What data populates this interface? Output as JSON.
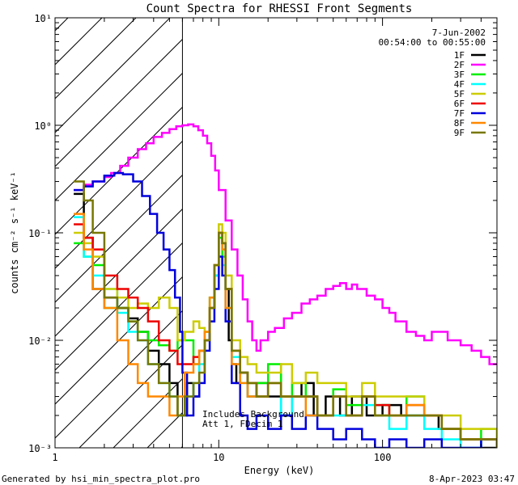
{
  "chart_data": {
    "type": "line",
    "title": "Count Spectra for RHESSI Front Segments",
    "xlabel": "Energy (keV)",
    "ylabel": "counts cm⁻² s⁻¹ keV⁻¹",
    "xscale": "log",
    "yscale": "log",
    "xlim": [
      1,
      500
    ],
    "ylim": [
      0.001,
      10
    ],
    "x_ticks": [
      {
        "value": 1,
        "label": "1"
      },
      {
        "value": 10,
        "label": "10"
      },
      {
        "value": 100,
        "label": "100"
      }
    ],
    "y_ticks": [
      {
        "value": 10,
        "label": "10¹"
      },
      {
        "value": 1,
        "label": "10⁰"
      },
      {
        "value": 0.1,
        "label": "10⁻¹"
      },
      {
        "value": 0.01,
        "label": "10⁻²"
      },
      {
        "value": 0.001,
        "label": "10⁻³"
      }
    ],
    "date": "7-Jun-2002",
    "time_range": "00:54:00 to 00:55:00",
    "attenuator_region_max_kev": 6,
    "annotation_line1": "Includes Background",
    "annotation_line2": "Att 1, FDecim 1",
    "legend_position": "top-right",
    "series": [
      {
        "name": "1F",
        "color": "#000000",
        "x": [
          1.3,
          1.5,
          1.7,
          2.0,
          2.4,
          2.8,
          3.2,
          3.7,
          4.3,
          5.0,
          5.6,
          6.0,
          6.4,
          7.0,
          7.6,
          8.2,
          8.8,
          9.4,
          10.0,
          10.5,
          11.0,
          11.5,
          12.0,
          12.8,
          13.5,
          15,
          17,
          20,
          24,
          28,
          32,
          38,
          45,
          55,
          65,
          80,
          100,
          130,
          170,
          220,
          300,
          400,
          500
        ],
        "y": [
          0.23,
          0.09,
          0.03,
          0.025,
          0.02,
          0.016,
          0.012,
          0.008,
          0.006,
          0.004,
          0.002,
          0.002,
          0.004,
          0.003,
          0.008,
          0.01,
          0.02,
          0.04,
          0.1,
          0.08,
          0.03,
          0.01,
          0.006,
          0.004,
          0.005,
          0.003,
          0.004,
          0.003,
          0.002,
          0.003,
          0.004,
          0.002,
          0.003,
          0.002,
          0.003,
          0.002,
          0.0025,
          0.002,
          0.002,
          0.0015,
          0.0012,
          0.001,
          0.001
        ]
      },
      {
        "name": "2F",
        "color": "#ff00ff",
        "x": [
          1.3,
          1.5,
          1.7,
          2.0,
          2.2,
          2.5,
          2.8,
          3.2,
          3.6,
          4.0,
          4.5,
          5.0,
          5.5,
          6.0,
          6.5,
          7.0,
          7.5,
          8.0,
          8.5,
          9.0,
          9.5,
          10.0,
          11.0,
          12.0,
          13.0,
          14.0,
          15.0,
          16.0,
          17.0,
          18.0,
          20,
          22,
          25,
          28,
          32,
          36,
          40,
          45,
          50,
          55,
          60,
          65,
          70,
          80,
          90,
          100,
          110,
          120,
          140,
          160,
          180,
          200,
          250,
          300,
          350,
          400,
          450,
          500
        ],
        "y": [
          0.25,
          0.28,
          0.3,
          0.33,
          0.36,
          0.42,
          0.5,
          0.6,
          0.68,
          0.78,
          0.85,
          0.92,
          0.98,
          1.0,
          1.02,
          0.98,
          0.9,
          0.8,
          0.68,
          0.52,
          0.38,
          0.25,
          0.13,
          0.07,
          0.04,
          0.024,
          0.015,
          0.01,
          0.008,
          0.01,
          0.012,
          0.013,
          0.016,
          0.018,
          0.022,
          0.024,
          0.026,
          0.03,
          0.032,
          0.034,
          0.03,
          0.033,
          0.03,
          0.026,
          0.024,
          0.02,
          0.018,
          0.015,
          0.012,
          0.011,
          0.01,
          0.012,
          0.01,
          0.009,
          0.008,
          0.007,
          0.006,
          0.006
        ]
      },
      {
        "name": "3F",
        "color": "#00ee00",
        "x": [
          1.3,
          1.5,
          1.7,
          2.0,
          2.4,
          2.8,
          3.2,
          3.7,
          4.3,
          5.0,
          5.6,
          6.2,
          7.0,
          7.6,
          8.2,
          8.8,
          9.4,
          10.0,
          10.5,
          11.0,
          12.0,
          13.5,
          15,
          17,
          20,
          24,
          28,
          34,
          40,
          50,
          60,
          75,
          90,
          110,
          140,
          180,
          230,
          300,
          400,
          500
        ],
        "y": [
          0.08,
          0.06,
          0.05,
          0.02,
          0.02,
          0.015,
          0.012,
          0.01,
          0.009,
          0.008,
          0.01,
          0.01,
          0.006,
          0.008,
          0.012,
          0.025,
          0.05,
          0.09,
          0.06,
          0.03,
          0.008,
          0.005,
          0.004,
          0.004,
          0.006,
          0.003,
          0.004,
          0.003,
          0.002,
          0.0035,
          0.0025,
          0.003,
          0.0025,
          0.002,
          0.003,
          0.002,
          0.0015,
          0.0012,
          0.0015,
          0.001
        ]
      },
      {
        "name": "4F",
        "color": "#00ffff",
        "x": [
          1.3,
          1.5,
          1.7,
          2.0,
          2.4,
          2.8,
          3.2,
          3.7,
          4.3,
          5.0,
          5.6,
          6.2,
          7.0,
          7.6,
          8.2,
          8.8,
          9.4,
          10.0,
          10.5,
          11.0,
          12.0,
          13.5,
          15,
          17,
          20,
          24,
          28,
          34,
          40,
          50,
          60,
          75,
          90,
          110,
          140,
          180,
          230,
          300,
          400,
          500
        ],
        "y": [
          0.14,
          0.06,
          0.04,
          0.03,
          0.018,
          0.012,
          0.01,
          0.006,
          0.004,
          0.003,
          0.002,
          0.003,
          0.004,
          0.006,
          0.01,
          0.02,
          0.04,
          0.06,
          0.05,
          0.02,
          0.007,
          0.004,
          0.003,
          0.003,
          0.004,
          0.002,
          0.003,
          0.002,
          0.002,
          0.002,
          0.002,
          0.0025,
          0.002,
          0.0015,
          0.002,
          0.0015,
          0.0012,
          0.001,
          0.0012,
          0.001
        ]
      },
      {
        "name": "5F",
        "color": "#cccc00",
        "x": [
          1.3,
          1.5,
          1.7,
          2.0,
          2.4,
          2.8,
          3.2,
          3.7,
          4.3,
          5.0,
          5.6,
          6.2,
          7.0,
          7.6,
          8.2,
          8.8,
          9.4,
          10.0,
          10.5,
          11.0,
          12.0,
          13.5,
          15,
          17,
          20,
          24,
          28,
          34,
          40,
          50,
          60,
          75,
          90,
          110,
          140,
          180,
          230,
          300,
          400,
          500
        ],
        "y": [
          0.1,
          0.08,
          0.06,
          0.03,
          0.025,
          0.02,
          0.022,
          0.02,
          0.025,
          0.02,
          0.01,
          0.012,
          0.015,
          0.013,
          0.012,
          0.02,
          0.05,
          0.12,
          0.1,
          0.04,
          0.01,
          0.007,
          0.006,
          0.005,
          0.005,
          0.006,
          0.004,
          0.005,
          0.004,
          0.004,
          0.003,
          0.004,
          0.003,
          0.003,
          0.003,
          0.002,
          0.002,
          0.0015,
          0.0015,
          0.001
        ]
      },
      {
        "name": "6F",
        "color": "#ee0000",
        "x": [
          1.3,
          1.5,
          1.7,
          2.0,
          2.4,
          2.8,
          3.2,
          3.7,
          4.3,
          5.0,
          5.6,
          6.2,
          7.0,
          7.6,
          8.2,
          8.8,
          9.4,
          10.0,
          10.5,
          11.0,
          12.0,
          13.5,
          15,
          17,
          20,
          24,
          28,
          34,
          40,
          50,
          60,
          75,
          90,
          110,
          140,
          180,
          230,
          300,
          400,
          500
        ],
        "y": [
          0.12,
          0.09,
          0.07,
          0.04,
          0.03,
          0.025,
          0.02,
          0.015,
          0.01,
          0.008,
          0.006,
          0.006,
          0.007,
          0.008,
          0.01,
          0.02,
          0.05,
          0.1,
          0.08,
          0.03,
          0.008,
          0.005,
          0.004,
          0.003,
          0.004,
          0.003,
          0.003,
          0.003,
          0.002,
          0.003,
          0.002,
          0.003,
          0.0025,
          0.002,
          0.0025,
          0.002,
          0.0015,
          0.0012,
          0.0012,
          0.001
        ]
      },
      {
        "name": "7F",
        "color": "#0000dd",
        "x": [
          1.3,
          1.5,
          1.7,
          2.0,
          2.3,
          2.6,
          3.0,
          3.4,
          3.8,
          4.2,
          4.6,
          5.0,
          5.4,
          5.8,
          6.0,
          6.4,
          7.0,
          7.6,
          8.2,
          8.8,
          9.4,
          10.0,
          10.5,
          11.0,
          12.0,
          13.5,
          15,
          17,
          20,
          24,
          28,
          34,
          40,
          50,
          60,
          75,
          90,
          110,
          140,
          180,
          230,
          300,
          400,
          500
        ],
        "y": [
          0.25,
          0.27,
          0.3,
          0.34,
          0.36,
          0.35,
          0.3,
          0.22,
          0.15,
          0.1,
          0.07,
          0.045,
          0.025,
          0.012,
          0.005,
          0.002,
          0.003,
          0.004,
          0.008,
          0.015,
          0.03,
          0.06,
          0.04,
          0.015,
          0.004,
          0.002,
          0.0015,
          0.002,
          0.0015,
          0.002,
          0.0015,
          0.002,
          0.0015,
          0.0012,
          0.0015,
          0.0012,
          0.001,
          0.0012,
          0.001,
          0.0012,
          0.001,
          0.001,
          0.0012,
          0.001
        ]
      },
      {
        "name": "8F",
        "color": "#ff8800",
        "x": [
          1.3,
          1.5,
          1.7,
          2.0,
          2.4,
          2.8,
          3.2,
          3.7,
          4.3,
          5.0,
          5.6,
          6.2,
          7.0,
          7.6,
          8.2,
          8.8,
          9.4,
          10.0,
          10.5,
          11.0,
          12.0,
          13.5,
          15,
          17,
          20,
          24,
          28,
          34,
          40,
          50,
          60,
          75,
          90,
          110,
          140,
          180,
          230,
          300,
          400,
          500
        ],
        "y": [
          0.15,
          0.07,
          0.03,
          0.02,
          0.01,
          0.006,
          0.004,
          0.003,
          0.003,
          0.002,
          0.003,
          0.005,
          0.006,
          0.008,
          0.012,
          0.025,
          0.05,
          0.1,
          0.07,
          0.02,
          0.006,
          0.004,
          0.003,
          0.003,
          0.004,
          0.003,
          0.003,
          0.002,
          0.002,
          0.003,
          0.002,
          0.003,
          0.002,
          0.002,
          0.0025,
          0.002,
          0.0015,
          0.0012,
          0.0012,
          0.001
        ]
      },
      {
        "name": "9F",
        "color": "#777700",
        "x": [
          1.3,
          1.5,
          1.7,
          2.0,
          2.4,
          2.8,
          3.2,
          3.7,
          4.3,
          5.0,
          5.6,
          6.2,
          7.0,
          7.6,
          8.2,
          8.8,
          9.4,
          10.0,
          10.5,
          11.0,
          12.0,
          13.5,
          15,
          17,
          20,
          24,
          28,
          34,
          40,
          50,
          60,
          75,
          90,
          110,
          140,
          180,
          230,
          300,
          400,
          500
        ],
        "y": [
          0.3,
          0.2,
          0.1,
          0.025,
          0.02,
          0.015,
          0.01,
          0.006,
          0.004,
          0.003,
          0.002,
          0.003,
          0.004,
          0.005,
          0.01,
          0.02,
          0.05,
          0.1,
          0.08,
          0.03,
          0.008,
          0.005,
          0.004,
          0.003,
          0.004,
          0.003,
          0.003,
          0.003,
          0.002,
          0.003,
          0.002,
          0.003,
          0.002,
          0.002,
          0.002,
          0.002,
          0.0015,
          0.0012,
          0.0012,
          0.001
        ]
      }
    ]
  },
  "footer": {
    "left": "Generated by hsi_min_spectra_plot.pro",
    "right": "8-Apr-2023 03:47"
  }
}
